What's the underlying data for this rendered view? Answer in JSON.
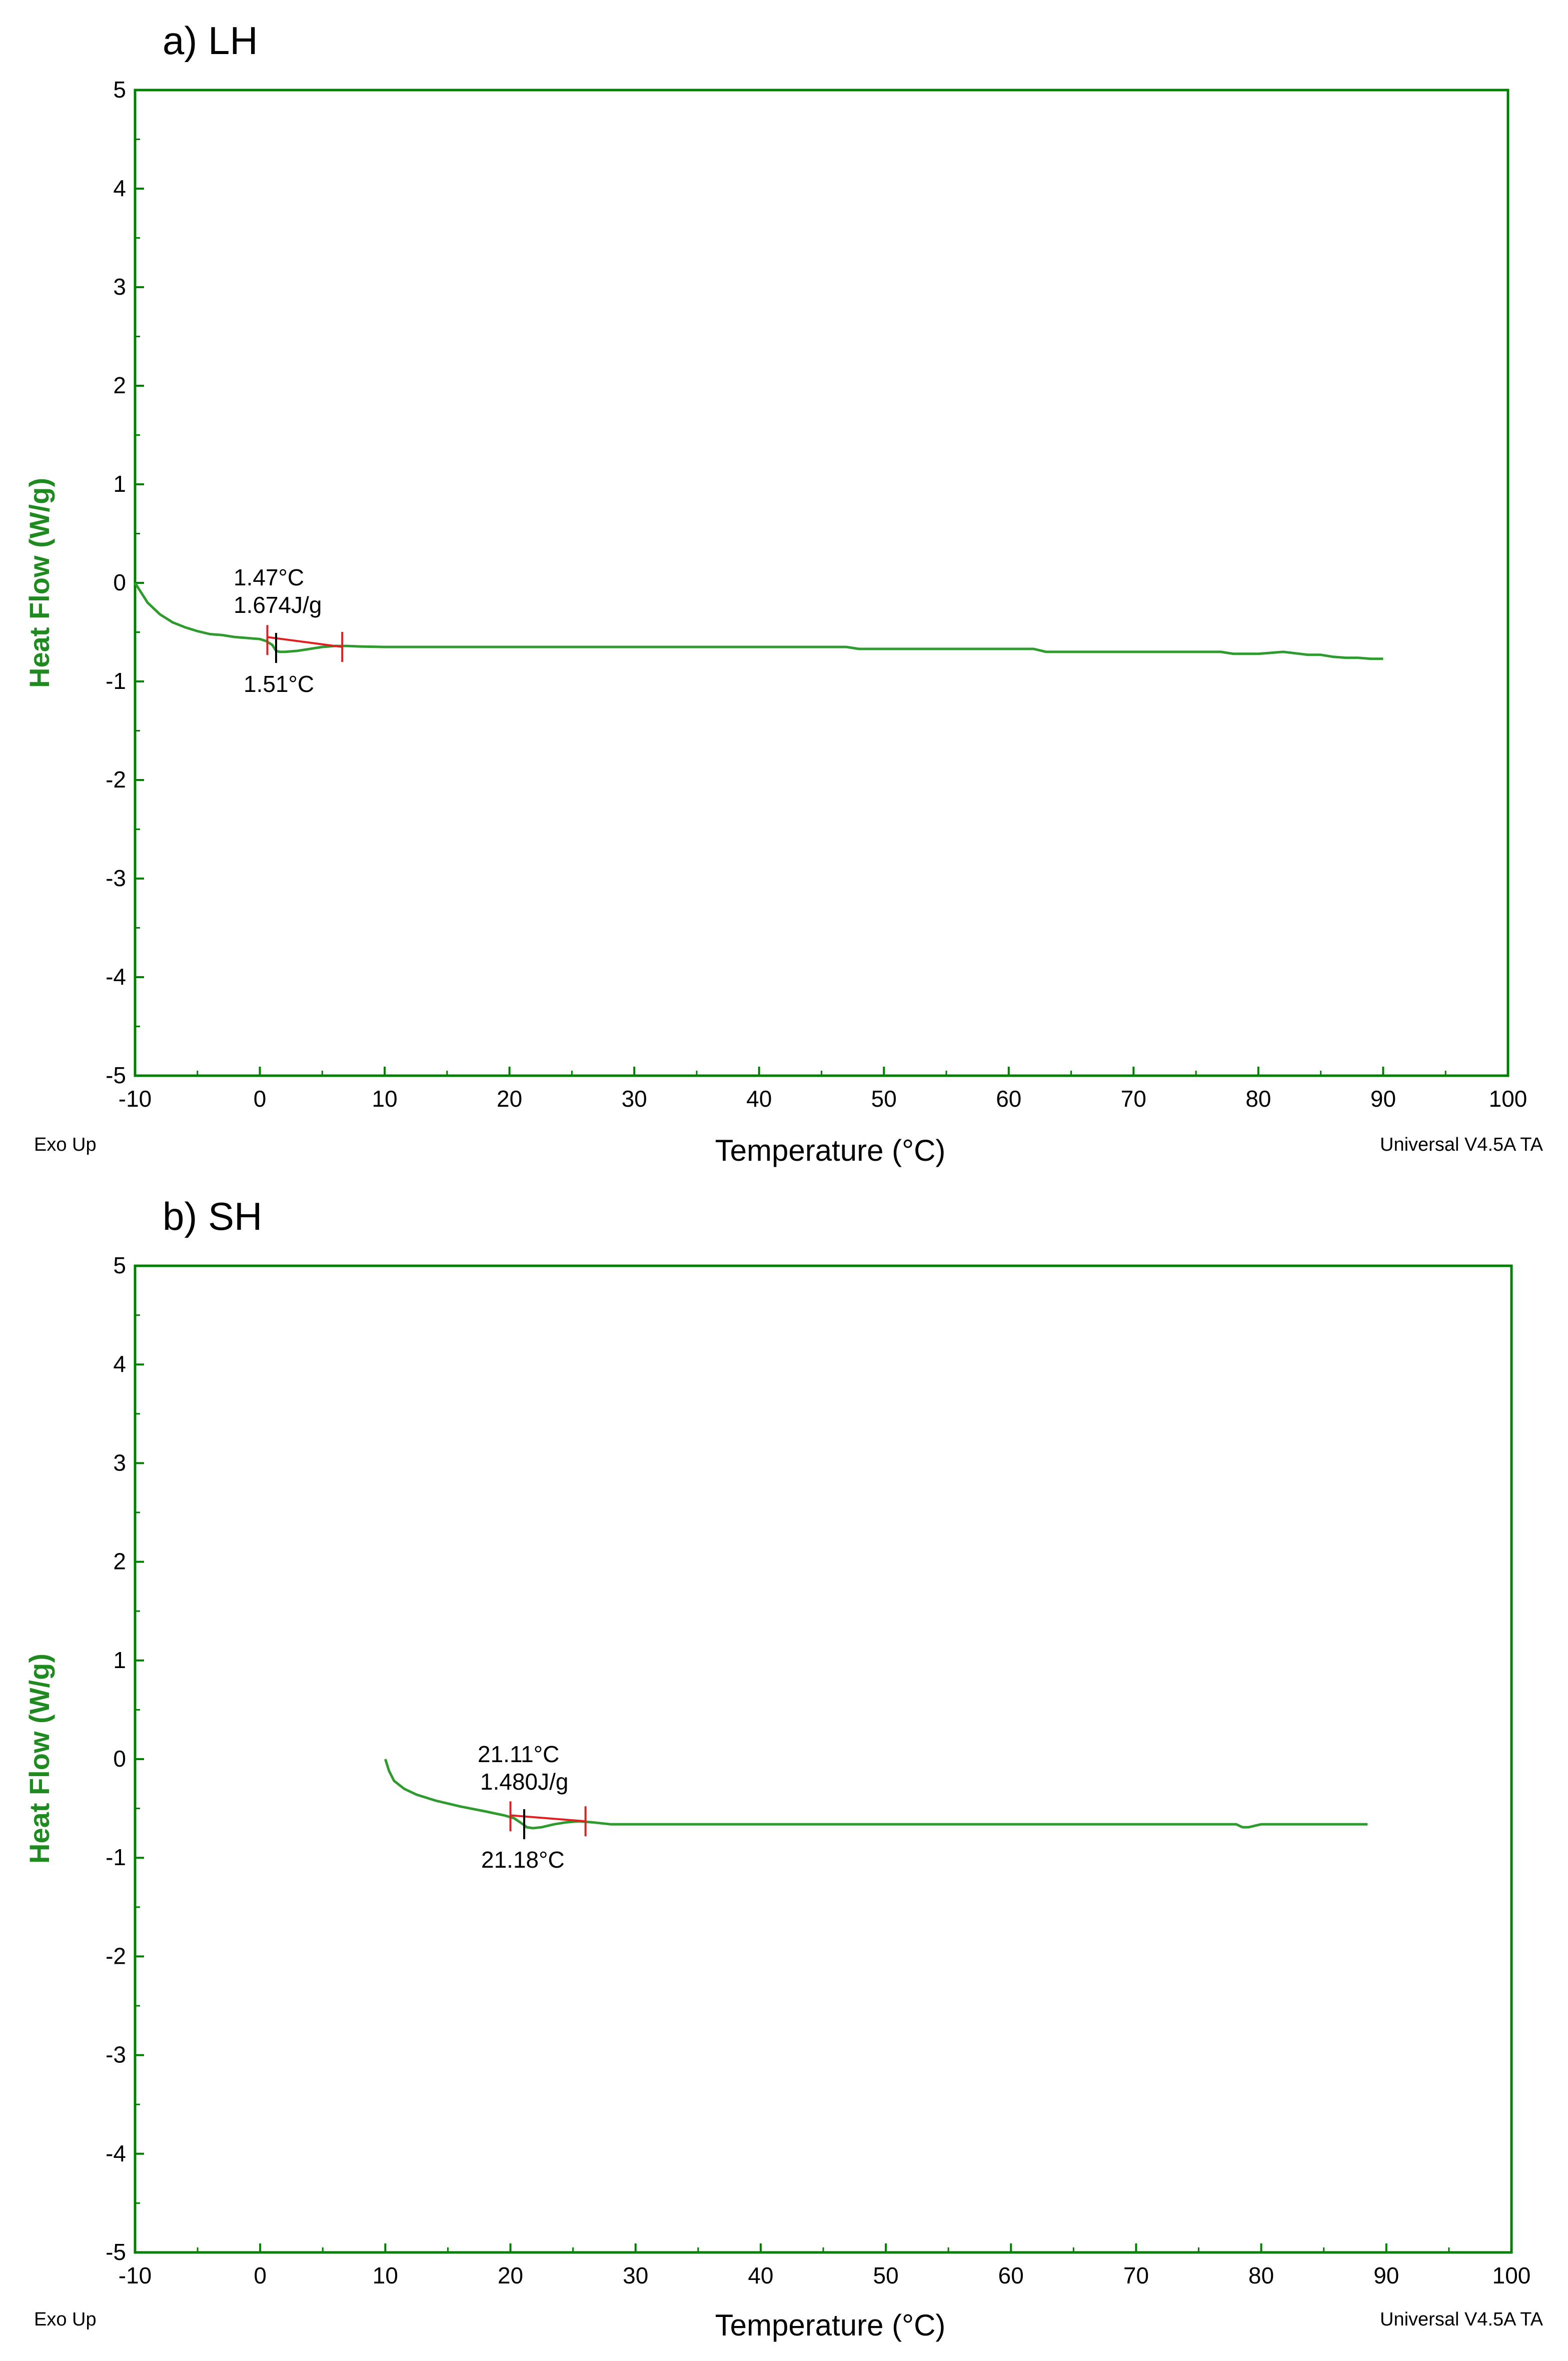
{
  "colors": {
    "axis": "#008000",
    "curve": "#2e9b2e",
    "baseline": "#e02020",
    "marker_red": "#e02020",
    "marker_black": "#000000",
    "text": "#000000",
    "ylabel": "#1f8a1f"
  },
  "chart_data": [
    {
      "type": "line",
      "title": "a) LH",
      "xlabel": "Temperature (°C)",
      "ylabel": "Heat Flow (W/g)",
      "xlim": [
        -10,
        100
      ],
      "ylim": [
        -5,
        5
      ],
      "xticks": [
        -10,
        0,
        10,
        20,
        30,
        40,
        50,
        60,
        70,
        80,
        90,
        100
      ],
      "yticks": [
        5,
        4,
        3,
        2,
        1,
        0,
        -1,
        -2,
        -3,
        -4,
        -5
      ],
      "footer_left": "Exo Up",
      "footer_right": "Universal V4.5A TA",
      "series": [
        {
          "name": "Heat Flow",
          "x": [
            -10,
            -9.5,
            -9,
            -8,
            -7,
            -6,
            -5,
            -4,
            -3,
            -2,
            -1,
            0,
            0.5,
            1.0,
            1.3,
            1.6,
            2.0,
            3.0,
            4.0,
            5.0,
            6.0,
            7.0,
            8.0,
            10,
            20,
            30,
            40,
            47,
            48,
            50,
            55,
            60,
            62,
            63,
            65,
            70,
            75,
            77,
            78,
            80,
            82,
            84,
            85,
            86,
            87,
            88,
            89,
            90
          ],
          "y": [
            0,
            -0.1,
            -0.2,
            -0.32,
            -0.4,
            -0.45,
            -0.49,
            -0.52,
            -0.53,
            -0.55,
            -0.56,
            -0.57,
            -0.59,
            -0.63,
            -0.69,
            -0.7,
            -0.7,
            -0.69,
            -0.67,
            -0.65,
            -0.64,
            -0.64,
            -0.645,
            -0.65,
            -0.65,
            -0.65,
            -0.65,
            -0.65,
            -0.67,
            -0.67,
            -0.67,
            -0.67,
            -0.67,
            -0.7,
            -0.7,
            -0.7,
            -0.7,
            -0.7,
            -0.72,
            -0.72,
            -0.7,
            -0.73,
            -0.73,
            -0.75,
            -0.76,
            -0.76,
            -0.77,
            -0.77
          ]
        }
      ],
      "baseline": {
        "x": [
          0.6,
          6.6
        ],
        "y": [
          -0.55,
          -0.65
        ]
      },
      "markers": [
        {
          "x": 0.6,
          "y": -0.58,
          "color": "red"
        },
        {
          "x": 1.3,
          "y": -0.66,
          "color": "black"
        },
        {
          "x": 6.6,
          "y": -0.65,
          "color": "red"
        }
      ],
      "annotations": {
        "onset_temp": "1.47°C",
        "enthalpy": "1.674J/g",
        "peak_temp": "1.51°C"
      }
    },
    {
      "type": "line",
      "title": "b) SH",
      "xlabel": "Temperature (°C)",
      "ylabel": "Heat Flow (W/g)",
      "xlim": [
        -10,
        100
      ],
      "ylim": [
        -5,
        5
      ],
      "xticks": [
        -10,
        0,
        10,
        20,
        30,
        40,
        50,
        60,
        70,
        80,
        90,
        100
      ],
      "yticks": [
        5,
        4,
        3,
        2,
        1,
        0,
        -1,
        -2,
        -3,
        -4,
        -5
      ],
      "footer_left": "Exo Up",
      "footer_right": "Universal V4.5A TA",
      "series": [
        {
          "name": "Heat Flow",
          "x": [
            10,
            10.3,
            10.7,
            11.5,
            12.5,
            14,
            16,
            18,
            19.5,
            20.3,
            21.0,
            21.3,
            21.8,
            22.5,
            23.5,
            24.5,
            25.5,
            26.5,
            28,
            30,
            40,
            50,
            60,
            70,
            78,
            78.5,
            79,
            80,
            85,
            88.5
          ],
          "y": [
            0,
            -0.12,
            -0.22,
            -0.3,
            -0.36,
            -0.42,
            -0.48,
            -0.53,
            -0.57,
            -0.6,
            -0.66,
            -0.69,
            -0.7,
            -0.69,
            -0.66,
            -0.64,
            -0.63,
            -0.64,
            -0.66,
            -0.66,
            -0.66,
            -0.66,
            -0.66,
            -0.66,
            -0.66,
            -0.69,
            -0.69,
            -0.66,
            -0.66,
            -0.66
          ]
        }
      ],
      "baseline": {
        "x": [
          20.0,
          26.0
        ],
        "y": [
          -0.57,
          -0.63
        ]
      },
      "markers": [
        {
          "x": 20.0,
          "y": -0.58,
          "color": "red"
        },
        {
          "x": 21.1,
          "y": -0.66,
          "color": "black"
        },
        {
          "x": 26.0,
          "y": -0.63,
          "color": "red"
        }
      ],
      "annotations": {
        "onset_temp": "21.11°C",
        "enthalpy": "1.480J/g",
        "peak_temp": "21.18°C"
      }
    }
  ]
}
